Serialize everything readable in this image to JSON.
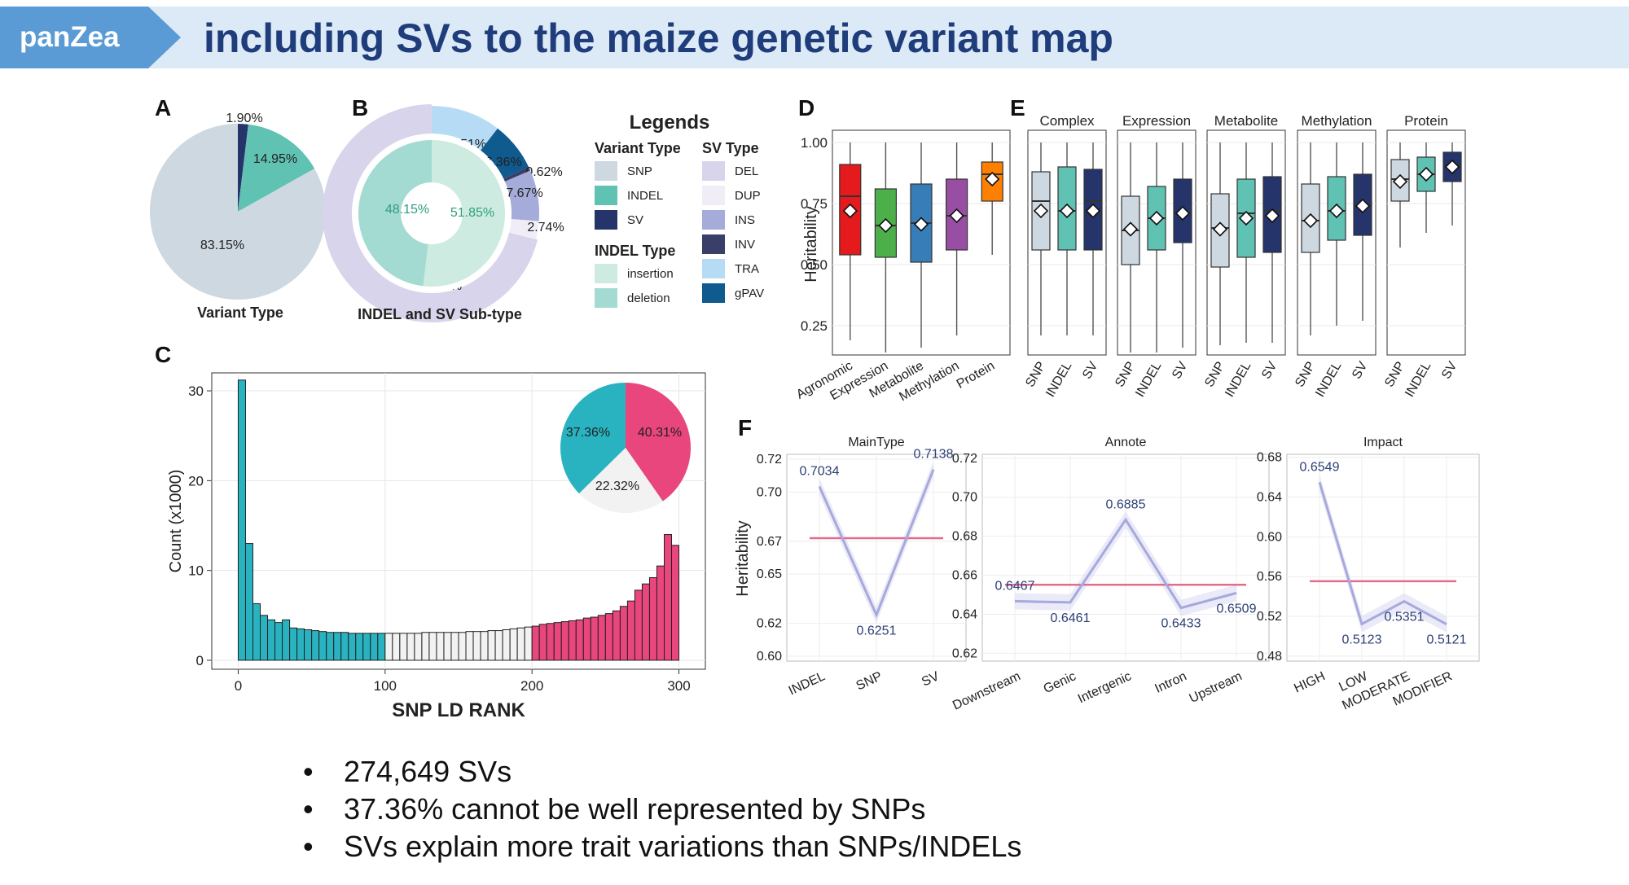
{
  "header": {
    "tag": "panZea",
    "title": "including SVs to the maize genetic variant map"
  },
  "bullets": [
    "274,649 SVs",
    "37.36% cannot be well represented by SNPs",
    "SVs explain more trait variations than SNPs/INDELs"
  ],
  "colors": {
    "snp": "#cdd8e1",
    "indel": "#5fc2b2",
    "sv": "#25346b",
    "insertion": "#cdebe0",
    "deletion": "#a3dbd2",
    "del": "#d8d4eb",
    "dup": "#f0edf7",
    "ins": "#a5acd9",
    "inv": "#3a3f6a",
    "tra": "#b6dbf5",
    "gpav": "#0f5a8f",
    "hist_left": "#29b3c0",
    "hist_mid": "#f2f2f2",
    "hist_right": "#e8467c",
    "agronomic": "#e41a1c",
    "expression": "#4daf4a",
    "metabolite": "#377eb8",
    "methylation": "#984ea3",
    "protein": "#ff7f00",
    "mean_line": "#e16d8a",
    "trend_line": "#a7a9dd"
  },
  "chart_data": [
    {
      "panel": "A",
      "type": "pie",
      "title": "Variant Type",
      "slices": [
        {
          "label": "SV",
          "value": 1.9,
          "text": "1.90%",
          "color": "#25346b"
        },
        {
          "label": "INDEL",
          "value": 14.95,
          "text": "14.95%",
          "color": "#5fc2b2"
        },
        {
          "label": "SNP",
          "value": 83.15,
          "text": "83.15%",
          "color": "#cdd8e1"
        }
      ]
    },
    {
      "panel": "B",
      "type": "pie",
      "title": "INDEL and SV Sub-type",
      "inner": [
        {
          "label": "insertion",
          "value": 51.85,
          "text": "51.85%",
          "color": "#cdebe0"
        },
        {
          "label": "deletion",
          "value": 48.15,
          "text": "48.15%",
          "color": "#a3dbd2"
        }
      ],
      "outer": [
        {
          "label": "TRA",
          "value": 10.51,
          "text": "10.51%",
          "color": "#b6dbf5"
        },
        {
          "label": "gPAV",
          "value": 7.36,
          "text": "7.36%",
          "color": "#0f5a8f"
        },
        {
          "label": "INV",
          "value": 0.62,
          "text": "0.62%",
          "color": "#3a3f6a"
        },
        {
          "label": "INS",
          "value": 7.67,
          "text": "7.67%",
          "color": "#a5acd9"
        },
        {
          "label": "DUP",
          "value": 2.74,
          "text": "2.74%",
          "color": "#f0edf7"
        },
        {
          "label": "DEL",
          "value": 71.09,
          "text": "71.09%",
          "color": "#d8d4eb"
        }
      ],
      "legend": {
        "title": "Legends",
        "groups": [
          {
            "title": "Variant Type",
            "items": [
              {
                "label": "SNP",
                "color": "#cdd8e1"
              },
              {
                "label": "INDEL",
                "color": "#5fc2b2"
              },
              {
                "label": "SV",
                "color": "#25346b"
              }
            ]
          },
          {
            "title": "INDEL Type",
            "items": [
              {
                "label": "insertion",
                "color": "#cdebe0"
              },
              {
                "label": "deletion",
                "color": "#a3dbd2"
              }
            ]
          },
          {
            "title": "SV Type",
            "items": [
              {
                "label": "DEL",
                "color": "#d8d4eb"
              },
              {
                "label": "DUP",
                "color": "#f0edf7"
              },
              {
                "label": "INS",
                "color": "#a5acd9"
              },
              {
                "label": "INV",
                "color": "#3a3f6a"
              },
              {
                "label": "TRA",
                "color": "#b6dbf5"
              },
              {
                "label": "gPAV",
                "color": "#0f5a8f"
              }
            ]
          }
        ]
      }
    },
    {
      "panel": "C",
      "type": "bar",
      "xlabel": "SNP LD RANK",
      "ylabel": "Count (x1000)",
      "xlim": [
        -18,
        318
      ],
      "ylim": [
        -1,
        32
      ],
      "xticks": [
        0,
        100,
        200,
        300
      ],
      "yticks": [
        0,
        10,
        20,
        30
      ],
      "bin_width": 5,
      "bins": [
        {
          "x": 0,
          "y": 31.2
        },
        {
          "x": 5,
          "y": 13.0
        },
        {
          "x": 10,
          "y": 6.3
        },
        {
          "x": 15,
          "y": 5.0
        },
        {
          "x": 20,
          "y": 4.5
        },
        {
          "x": 25,
          "y": 4.2
        },
        {
          "x": 30,
          "y": 4.5
        },
        {
          "x": 35,
          "y": 3.6
        },
        {
          "x": 40,
          "y": 3.5
        },
        {
          "x": 45,
          "y": 3.4
        },
        {
          "x": 50,
          "y": 3.3
        },
        {
          "x": 55,
          "y": 3.2
        },
        {
          "x": 60,
          "y": 3.1
        },
        {
          "x": 65,
          "y": 3.1
        },
        {
          "x": 70,
          "y": 3.1
        },
        {
          "x": 75,
          "y": 3.0
        },
        {
          "x": 80,
          "y": 3.0
        },
        {
          "x": 85,
          "y": 3.0
        },
        {
          "x": 90,
          "y": 3.0
        },
        {
          "x": 95,
          "y": 3.0
        },
        {
          "x": 100,
          "y": 3.0
        },
        {
          "x": 105,
          "y": 3.0
        },
        {
          "x": 110,
          "y": 3.0
        },
        {
          "x": 115,
          "y": 3.0
        },
        {
          "x": 120,
          "y": 3.0
        },
        {
          "x": 125,
          "y": 3.1
        },
        {
          "x": 130,
          "y": 3.1
        },
        {
          "x": 135,
          "y": 3.1
        },
        {
          "x": 140,
          "y": 3.1
        },
        {
          "x": 145,
          "y": 3.1
        },
        {
          "x": 150,
          "y": 3.1
        },
        {
          "x": 155,
          "y": 3.2
        },
        {
          "x": 160,
          "y": 3.2
        },
        {
          "x": 165,
          "y": 3.2
        },
        {
          "x": 170,
          "y": 3.3
        },
        {
          "x": 175,
          "y": 3.3
        },
        {
          "x": 180,
          "y": 3.4
        },
        {
          "x": 185,
          "y": 3.5
        },
        {
          "x": 190,
          "y": 3.6
        },
        {
          "x": 195,
          "y": 3.7
        },
        {
          "x": 200,
          "y": 3.8
        },
        {
          "x": 205,
          "y": 4.0
        },
        {
          "x": 210,
          "y": 4.1
        },
        {
          "x": 215,
          "y": 4.2
        },
        {
          "x": 220,
          "y": 4.3
        },
        {
          "x": 225,
          "y": 4.4
        },
        {
          "x": 230,
          "y": 4.5
        },
        {
          "x": 235,
          "y": 4.7
        },
        {
          "x": 240,
          "y": 4.8
        },
        {
          "x": 245,
          "y": 5.0
        },
        {
          "x": 250,
          "y": 5.2
        },
        {
          "x": 255,
          "y": 5.5
        },
        {
          "x": 260,
          "y": 6.0
        },
        {
          "x": 265,
          "y": 6.6
        },
        {
          "x": 270,
          "y": 7.8
        },
        {
          "x": 275,
          "y": 8.5
        },
        {
          "x": 280,
          "y": 9.2
        },
        {
          "x": 285,
          "y": 10.5
        },
        {
          "x": 290,
          "y": 14.0
        },
        {
          "x": 295,
          "y": 12.8
        }
      ],
      "inset_pie": [
        {
          "value": 40.31,
          "text": "40.31%",
          "color": "#e8467c"
        },
        {
          "value": 22.32,
          "text": "22.32%",
          "color": "#f2f2f2"
        },
        {
          "value": 37.36,
          "text": "37.36%",
          "color": "#29b3c0"
        }
      ]
    },
    {
      "panel": "D",
      "type": "box",
      "ylabel": "Heritability",
      "ylim": [
        0.13,
        1.05
      ],
      "yticks": [
        0.25,
        0.5,
        0.75,
        1.0
      ],
      "ytick_labels": [
        "0.25",
        "0.50",
        "0.75",
        "1.00"
      ],
      "boxes": [
        {
          "label": "Agronomic",
          "min": 0.19,
          "q1": 0.54,
          "median": 0.78,
          "q3": 0.91,
          "max": 1.0,
          "mean": 0.72,
          "color": "#e41a1c"
        },
        {
          "label": "Expression",
          "min": 0.14,
          "q1": 0.53,
          "median": 0.66,
          "q3": 0.81,
          "max": 1.0,
          "mean": 0.66,
          "color": "#4daf4a"
        },
        {
          "label": "Metabolite",
          "min": 0.16,
          "q1": 0.51,
          "median": 0.67,
          "q3": 0.83,
          "max": 1.0,
          "mean": 0.665,
          "color": "#377eb8"
        },
        {
          "label": "Methylation",
          "min": 0.21,
          "q1": 0.56,
          "median": 0.7,
          "q3": 0.85,
          "max": 1.0,
          "mean": 0.7,
          "color": "#984ea3"
        },
        {
          "label": "Protein",
          "min": 0.54,
          "q1": 0.76,
          "median": 0.87,
          "q3": 0.92,
          "max": 1.0,
          "mean": 0.85,
          "color": "#ff7f00"
        }
      ]
    },
    {
      "panel": "E",
      "type": "box",
      "ylim": [
        0.13,
        1.05
      ],
      "facets": [
        {
          "title": "Complex",
          "boxes": [
            {
              "label": "SNP",
              "min": 0.21,
              "q1": 0.56,
              "median": 0.76,
              "q3": 0.88,
              "max": 1.0,
              "mean": 0.72,
              "color": "#cdd8e1"
            },
            {
              "label": "INDEL",
              "min": 0.21,
              "q1": 0.56,
              "median": 0.72,
              "q3": 0.9,
              "max": 1.0,
              "mean": 0.72,
              "color": "#5fc2b2"
            },
            {
              "label": "SV",
              "min": 0.21,
              "q1": 0.56,
              "median": 0.76,
              "q3": 0.89,
              "max": 1.0,
              "mean": 0.72,
              "color": "#25346b"
            }
          ]
        },
        {
          "title": "Expression",
          "boxes": [
            {
              "label": "SNP",
              "min": 0.14,
              "q1": 0.5,
              "median": 0.64,
              "q3": 0.78,
              "max": 1.0,
              "mean": 0.645,
              "color": "#cdd8e1"
            },
            {
              "label": "INDEL",
              "min": 0.14,
              "q1": 0.56,
              "median": 0.69,
              "q3": 0.82,
              "max": 1.0,
              "mean": 0.69,
              "color": "#5fc2b2"
            },
            {
              "label": "SV",
              "min": 0.16,
              "q1": 0.59,
              "median": 0.71,
              "q3": 0.85,
              "max": 1.0,
              "mean": 0.71,
              "color": "#25346b"
            }
          ]
        },
        {
          "title": "Metabolite",
          "boxes": [
            {
              "label": "SNP",
              "min": 0.17,
              "q1": 0.49,
              "median": 0.65,
              "q3": 0.79,
              "max": 1.0,
              "mean": 0.645,
              "color": "#cdd8e1"
            },
            {
              "label": "INDEL",
              "min": 0.18,
              "q1": 0.53,
              "median": 0.71,
              "q3": 0.85,
              "max": 1.0,
              "mean": 0.69,
              "color": "#5fc2b2"
            },
            {
              "label": "SV",
              "min": 0.18,
              "q1": 0.55,
              "median": 0.72,
              "q3": 0.86,
              "max": 1.0,
              "mean": 0.7,
              "color": "#25346b"
            }
          ]
        },
        {
          "title": "Methylation",
          "boxes": [
            {
              "label": "SNP",
              "min": 0.21,
              "q1": 0.55,
              "median": 0.68,
              "q3": 0.83,
              "max": 1.0,
              "mean": 0.68,
              "color": "#cdd8e1"
            },
            {
              "label": "INDEL",
              "min": 0.25,
              "q1": 0.6,
              "median": 0.72,
              "q3": 0.86,
              "max": 1.0,
              "mean": 0.72,
              "color": "#5fc2b2"
            },
            {
              "label": "SV",
              "min": 0.27,
              "q1": 0.62,
              "median": 0.74,
              "q3": 0.87,
              "max": 1.0,
              "mean": 0.74,
              "color": "#25346b"
            }
          ]
        },
        {
          "title": "Protein",
          "boxes": [
            {
              "label": "SNP",
              "min": 0.57,
              "q1": 0.76,
              "median": 0.85,
              "q3": 0.93,
              "max": 1.0,
              "mean": 0.84,
              "color": "#cdd8e1"
            },
            {
              "label": "INDEL",
              "min": 0.63,
              "q1": 0.8,
              "median": 0.87,
              "q3": 0.94,
              "max": 1.0,
              "mean": 0.87,
              "color": "#5fc2b2"
            },
            {
              "label": "SV",
              "min": 0.66,
              "q1": 0.84,
              "median": 0.91,
              "q3": 0.96,
              "max": 1.0,
              "mean": 0.9,
              "color": "#25346b"
            }
          ]
        }
      ]
    },
    {
      "panel": "F",
      "type": "line",
      "ylabel": "Heritability",
      "facets": [
        {
          "title": "MainType",
          "ylim": [
            0.597,
            0.723
          ],
          "yticks": [
            0.6,
            0.62,
            0.65,
            0.67,
            0.7,
            0.72
          ],
          "ytick_labels": [
            "0.60",
            "0.62",
            "0.65",
            "0.67",
            "0.70",
            "0.72"
          ],
          "categories": [
            "INDEL",
            "SNP",
            "SV"
          ],
          "values": [
            0.7034,
            0.6251,
            0.7138
          ],
          "value_labels": [
            "0.7034",
            "0.6251",
            "0.7138"
          ],
          "mean": 0.6719
        },
        {
          "title": "Annote",
          "ylim": [
            0.616,
            0.722
          ],
          "yticks": [
            0.62,
            0.64,
            0.66,
            0.68,
            0.7,
            0.72
          ],
          "ytick_labels": [
            "0.62",
            "0.64",
            "0.66",
            "0.68",
            "0.70",
            "0.72"
          ],
          "categories": [
            "Downstream",
            "Genic",
            "Intergenic",
            "Intron",
            "Upstream"
          ],
          "values": [
            0.6467,
            0.6461,
            0.6885,
            0.6433,
            0.6509
          ],
          "value_labels": [
            "0.6467",
            "0.6461",
            "0.6885",
            "0.6433",
            "0.6509"
          ],
          "mean": 0.6551
        },
        {
          "title": "Impact",
          "ylim": [
            0.475,
            0.683
          ],
          "yticks": [
            0.48,
            0.52,
            0.56,
            0.6,
            0.64,
            0.68
          ],
          "ytick_labels": [
            "0.48",
            "0.52",
            "0.56",
            "0.60",
            "0.64",
            "0.68"
          ],
          "categories": [
            "HIGH",
            "LOW",
            "MODERATE",
            "MODIFIER"
          ],
          "values": [
            0.6549,
            0.5123,
            0.5351,
            0.5121
          ],
          "value_labels": [
            "0.6549",
            "0.5123",
            "0.5351",
            "0.5121"
          ],
          "mean": 0.5554
        }
      ]
    }
  ]
}
